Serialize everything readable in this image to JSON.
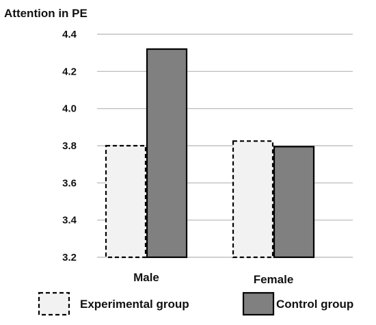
{
  "chart_data": {
    "type": "bar",
    "title": "",
    "ylabel": "Attention in PE",
    "xlabel": "",
    "categories": [
      "Male",
      "Female"
    ],
    "series": [
      {
        "name": "Experimental group",
        "values": [
          3.8,
          3.825
        ],
        "fill": "#f2f2f2",
        "stroke": "#000000",
        "dashed": true
      },
      {
        "name": "Control group",
        "values": [
          4.32,
          3.795
        ],
        "fill": "#808080",
        "stroke": "#000000",
        "dashed": false
      }
    ],
    "ylim": [
      3.2,
      4.4
    ],
    "yticks": [
      "3.2",
      "3.4",
      "3.6",
      "3.8",
      "4.0",
      "4.2",
      "4.4"
    ],
    "grid": true,
    "legend": "bottom"
  }
}
